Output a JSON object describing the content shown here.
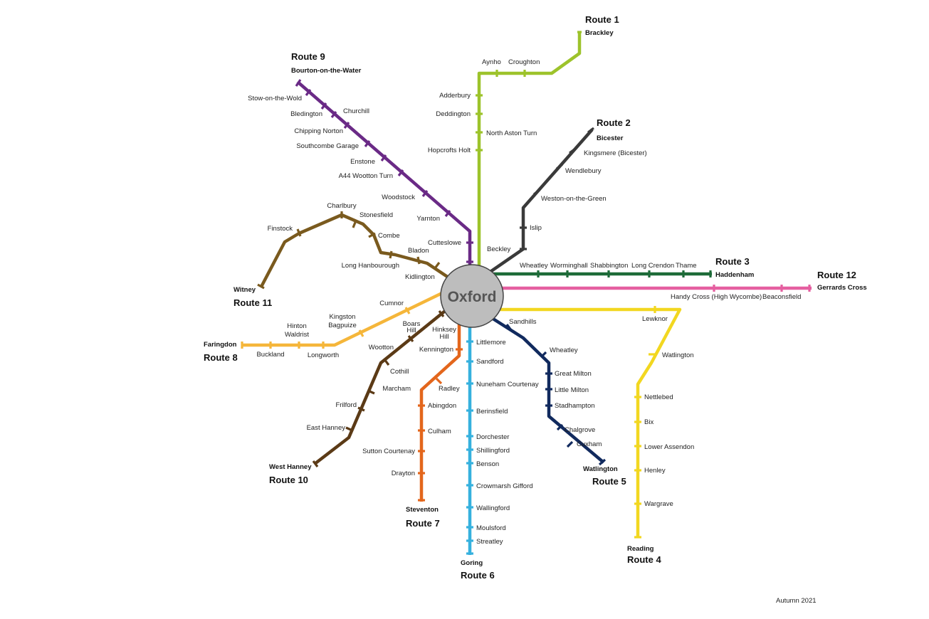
{
  "hub": {
    "name": "Oxford"
  },
  "footer": {
    "date": "Autumn 2021"
  },
  "colors": {
    "route1": "#9dc32b",
    "route2": "#3a3a3a",
    "route3": "#1d6b38",
    "route4": "#f2d720",
    "route5": "#112a5e",
    "route6": "#36b1de",
    "route7": "#e3661c",
    "route8": "#f5b63a",
    "route9": "#6a2a86",
    "route10": "#5b3a16",
    "route11": "#7a5a1e",
    "route12": "#e55fa0"
  },
  "routes": {
    "r1": {
      "label": "Route 1",
      "terminus": "Brackley"
    },
    "r2": {
      "label": "Route 2",
      "terminus": "Bicester"
    },
    "r3": {
      "label": "Route 3",
      "terminus": "Haddenham"
    },
    "r4": {
      "label": "Route 4",
      "terminus": "Reading"
    },
    "r5": {
      "label": "Route 5",
      "terminus": "Watlington"
    },
    "r6": {
      "label": "Route 6",
      "terminus": "Goring"
    },
    "r7": {
      "label": "Route 7",
      "terminus": "Steventon"
    },
    "r8": {
      "label": "Route 8",
      "terminus": "Faringdon"
    },
    "r9": {
      "label": "Route 9",
      "terminus": "Bourton-on-the-Water"
    },
    "r10": {
      "label": "Route 10",
      "terminus": "West Hanney"
    },
    "r11": {
      "label": "Route 11",
      "terminus": "Witney"
    },
    "r12": {
      "label": "Route 12",
      "terminus": "Gerrards Cross"
    }
  },
  "stops": {
    "r1": [
      "Croughton",
      "Aynho",
      "Adderbury",
      "Deddington",
      "North Aston Turn",
      "Hopcrofts Holt"
    ],
    "r2": [
      "Kingsmere (Bicester)",
      "Wendlebury",
      "Weston-on-the-Green",
      "Islip",
      "Beckley"
    ],
    "r3": [
      "Wheatley",
      "Worminghall",
      "Shabbington",
      "Long Crendon",
      "Thame"
    ],
    "r4": [
      "Lewknor",
      "Watlington",
      "Nettlebed",
      "Bix",
      "Lower Assendon",
      "Henley",
      "Wargrave"
    ],
    "r5": [
      "Sandhills",
      "Wheatley",
      "Great Milton",
      "Little Milton",
      "Stadhampton",
      "Chalgrove",
      "Cuxham"
    ],
    "r6": [
      "Littlemore",
      "Sandford",
      "Nuneham Courtenay",
      "Berinsfield",
      "Dorchester",
      "Shillingford",
      "Benson",
      "Crowmarsh Gifford",
      "Wallingford",
      "Moulsford",
      "Streatley"
    ],
    "r7": [
      "Kennington",
      "Radley",
      "Abingdon",
      "Culham",
      "Sutton Courtenay",
      "Drayton"
    ],
    "r8": [
      "Cumnor",
      "Kingston",
      "Bagpuize",
      "Hinton",
      "Waldrist",
      "Buckland",
      "Longworth"
    ],
    "r9": [
      "Stow-on-the-Wold",
      "Bledington",
      "Churchill",
      "Chipping Norton",
      "Southcombe Garage",
      "Enstone",
      "A44 Wootton Turn",
      "Woodstock",
      "Yarnton",
      "Cutteslowe"
    ],
    "r10": [
      "Boars",
      "Hill",
      "Wootton",
      "Cothill",
      "Marcham",
      "Frilford",
      "East Hanney"
    ],
    "r11": [
      "Finstock",
      "Charlbury",
      "Stonesfield",
      "Combe",
      "Bladon",
      "Long Hanbourough",
      "Kidlington"
    ],
    "r12": [
      "Handy Cross (High Wycombe)",
      "Beaconsfield"
    ],
    "r7b": [
      "Hinksey",
      "Hill"
    ]
  }
}
